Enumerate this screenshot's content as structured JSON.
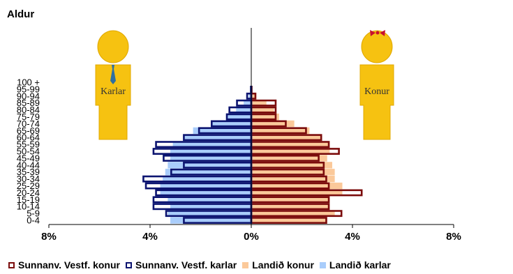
{
  "chart_data": {
    "type": "bar",
    "subtype": "population-pyramid",
    "title": "Aldur",
    "age_groups": [
      "0-4",
      "5-9",
      "10-14",
      "15-19",
      "20-24",
      "25-29",
      "30-34",
      "35-39",
      "40-44",
      "45-49",
      "50-54",
      "55-59",
      "60-64",
      "65-69",
      "70-74",
      "75-79",
      "80-84",
      "85-89",
      "90-94",
      "95-99",
      "100 +"
    ],
    "series": [
      {
        "name": "Landið konur",
        "side": "right",
        "style": "filled",
        "color": "#fbc99a",
        "values": [
          3.0,
          3.3,
          3.1,
          3.1,
          3.6,
          3.6,
          3.3,
          3.3,
          3.2,
          3.0,
          3.1,
          3.1,
          2.8,
          2.3,
          1.7,
          1.1,
          0.9,
          0.6,
          0.2,
          0.05,
          0.01
        ]
      },
      {
        "name": "Landið karlar",
        "side": "left",
        "style": "filled",
        "color": "#a9cdfb",
        "values": [
          3.2,
          3.3,
          3.2,
          3.3,
          3.6,
          3.6,
          3.5,
          3.4,
          3.3,
          3.2,
          3.2,
          3.1,
          2.7,
          2.3,
          1.6,
          1.0,
          0.6,
          0.3,
          0.1,
          0.02,
          0.01
        ]
      },
      {
        "name": "Sunnanv. Vestf. konur",
        "side": "right",
        "style": "outline",
        "color": "#7b0c0c",
        "values": [
          3.0,
          3.6,
          3.1,
          3.1,
          4.4,
          3.1,
          3.0,
          2.9,
          2.9,
          2.7,
          3.5,
          3.1,
          2.8,
          2.2,
          1.4,
          1.0,
          1.0,
          1.0,
          0.2,
          0.05,
          0.0
        ]
      },
      {
        "name": "Sunnanv. Vestf. karlar",
        "side": "left",
        "style": "outline",
        "color": "#0c1470",
        "values": [
          2.7,
          3.4,
          3.9,
          3.9,
          3.8,
          4.2,
          4.3,
          3.2,
          2.7,
          3.5,
          3.9,
          3.8,
          2.7,
          2.1,
          1.6,
          1.0,
          0.9,
          0.6,
          0.2,
          0.05,
          0.0
        ]
      }
    ],
    "x_ticks": [
      "8%",
      "4%",
      "0%",
      "4%",
      "8%"
    ],
    "xlim": [
      -8,
      8
    ],
    "legend_position": "bottom",
    "grid": false
  },
  "figures": {
    "male_label": "Karlar",
    "female_label": "Konur",
    "figure_color": "#f6c211"
  }
}
